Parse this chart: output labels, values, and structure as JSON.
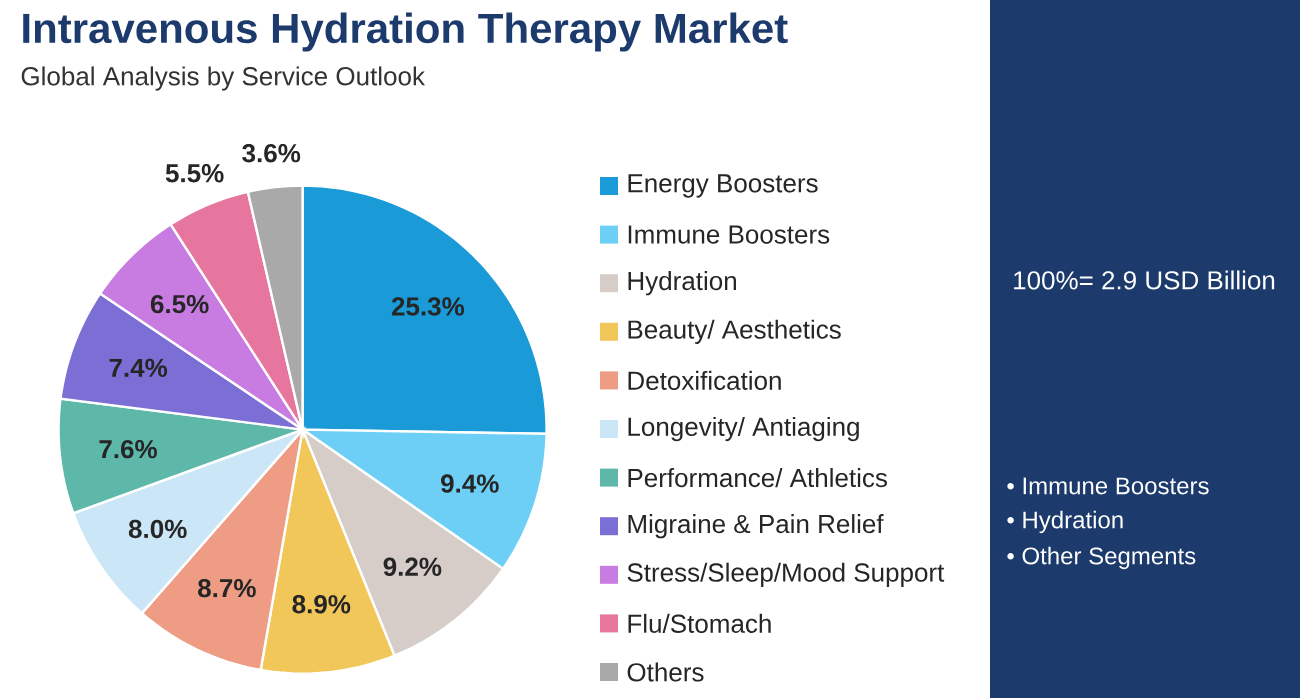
{
  "chart_data": {
    "type": "pie",
    "title": "Intravenous Hydration Therapy Market",
    "subtitle": "Global Analysis by Service Outlook",
    "categories": [
      "Energy Boosters",
      "Immune Boosters",
      "Hydration",
      "Beauty/ Aesthetics",
      "Detoxification",
      "Longevity/ Antiaging",
      "Performance/ Athletics",
      "Migraine & Pain Relief",
      "Stress/Sleep/Mood Support",
      "Flu/Stomach",
      "Others"
    ],
    "values": [
      25.3,
      9.4,
      9.2,
      8.9,
      8.7,
      8.0,
      7.6,
      7.4,
      6.5,
      5.5,
      3.6
    ],
    "colors": [
      "#1a9bd7",
      "#6dcff6",
      "#d6cdc9",
      "#f2c75a",
      "#ee9c84",
      "#cbe6f6",
      "#5db8a9",
      "#7b6fd6",
      "#c87be0",
      "#e7769f",
      "#a9a9a9"
    ],
    "value_labels": [
      "25.3%",
      "9.4%",
      "9.2%",
      "8.9%",
      "8.7%",
      "8.0%",
      "7.6%",
      "7.4%",
      "6.5%",
      "5.5%",
      "3.6%"
    ],
    "legend": "right",
    "annotations": [
      "100%= 2.9 USD Billion",
      "• Immune Boosters",
      "• Hydration",
      "• Other Segments"
    ]
  }
}
